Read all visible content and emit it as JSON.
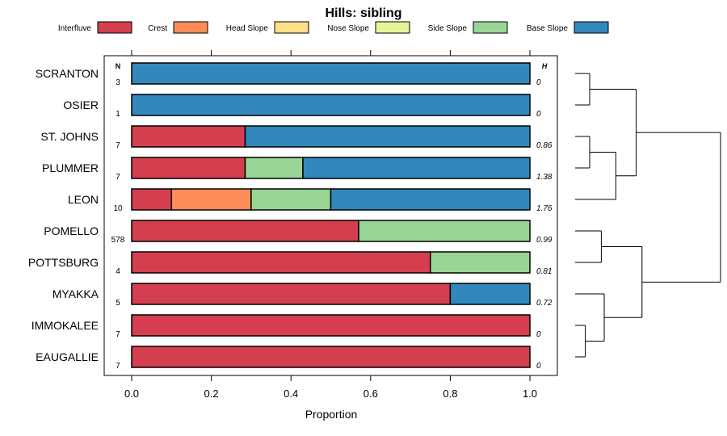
{
  "chart_data": {
    "type": "bar",
    "orientation": "horizontal",
    "stacked": true,
    "title": "Hills: sibling",
    "xlabel": "Proportion",
    "xlim": [
      0,
      1
    ],
    "xticks": [
      "0.0",
      "0.2",
      "0.4",
      "0.6",
      "0.8",
      "1.0"
    ],
    "n_header": "N",
    "h_header": "H",
    "legend_position": "top",
    "legend": [
      {
        "name": "Interfluve",
        "color": "#D53E4F"
      },
      {
        "name": "Crest",
        "color": "#FC8D59"
      },
      {
        "name": "Head Slope",
        "color": "#FEE08B"
      },
      {
        "name": "Nose Slope",
        "color": "#E6F598"
      },
      {
        "name": "Side Slope",
        "color": "#99D594"
      },
      {
        "name": "Base Slope",
        "color": "#3288BD"
      }
    ],
    "categories": [
      "SCRANTON",
      "OSIER",
      "ST. JOHNS",
      "PLUMMER",
      "LEON",
      "POMELLO",
      "POTTSBURG",
      "MYAKKA",
      "IMMOKALEE",
      "EAUGALLIE"
    ],
    "n": [
      "3",
      "1",
      "7",
      "7",
      "10",
      "578",
      "4",
      "5",
      "7",
      "7"
    ],
    "h": [
      "0",
      "0",
      "0.86",
      "1.38",
      "1.76",
      "0.99",
      "0.81",
      "0.72",
      "0",
      "0"
    ],
    "series": [
      {
        "name": "Interfluve",
        "values": [
          0,
          0,
          0.285,
          0.285,
          0.1,
          0.57,
          0.75,
          0.8,
          1.0,
          1.0
        ]
      },
      {
        "name": "Crest",
        "values": [
          0,
          0,
          0,
          0,
          0.2,
          0,
          0,
          0,
          0,
          0
        ]
      },
      {
        "name": "Head Slope",
        "values": [
          0,
          0,
          0,
          0,
          0,
          0,
          0,
          0,
          0,
          0
        ]
      },
      {
        "name": "Nose Slope",
        "values": [
          0,
          0,
          0,
          0,
          0,
          0,
          0,
          0,
          0,
          0
        ]
      },
      {
        "name": "Side Slope",
        "values": [
          0,
          0,
          0,
          0.145,
          0.2,
          0.43,
          0.25,
          0,
          0,
          0
        ]
      },
      {
        "name": "Base Slope",
        "values": [
          1.0,
          1.0,
          0.715,
          0.57,
          0.5,
          0,
          0,
          0.2,
          0,
          0
        ]
      }
    ],
    "dendrogram": [
      {
        "left": "SCRANTON",
        "right": "OSIER",
        "height": 0.1
      },
      {
        "left": "ST. JOHNS",
        "right": "PLUMMER",
        "height": 0.1
      },
      {
        "left": "ST. JOHNS + PLUMMER",
        "right": "LEON",
        "height": 0.28
      },
      {
        "left": "SCRANTON + OSIER",
        "right": "ST. JOHNS + PLUMMER + LEON",
        "height": 0.42
      },
      {
        "left": "POMELLO",
        "right": "POTTSBURG",
        "height": 0.18
      },
      {
        "left": "IMMOKALEE",
        "right": "EAUGALLIE",
        "height": 0.07
      },
      {
        "left": "MYAKKA",
        "right": "IMMOKALEE + EAUGALLIE",
        "height": 0.2
      },
      {
        "left": "POMELLO + POTTSBURG",
        "right": "MYAKKA + IMMOKALEE + EAUGALLIE",
        "height": 0.46
      },
      {
        "left": "upper cluster",
        "right": "lower cluster",
        "height": 1.0
      }
    ]
  }
}
